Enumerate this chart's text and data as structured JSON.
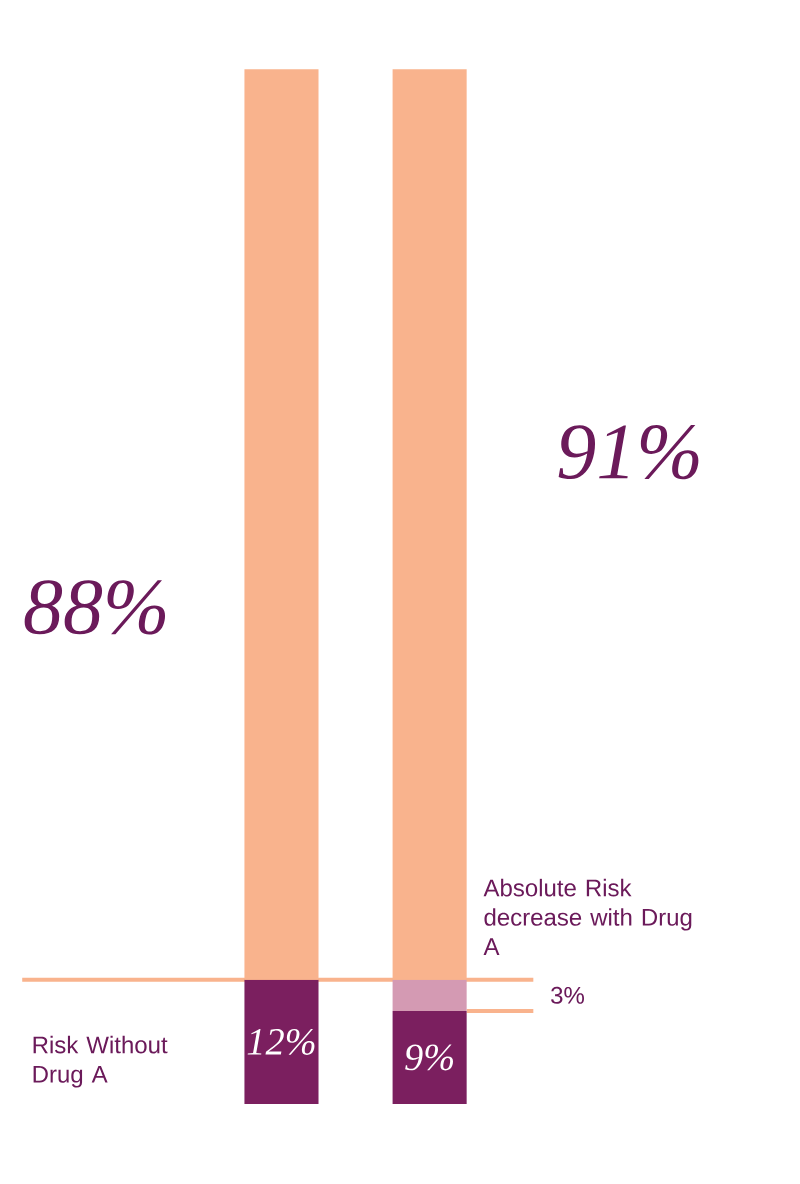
{
  "chart_data": {
    "type": "bar",
    "stacked": true,
    "categories": [
      null,
      null
    ],
    "ylim": [
      0,
      100
    ],
    "ref_lines": [
      {
        "axis": "y",
        "value": 12,
        "color": "#f9b38d"
      },
      {
        "axis": "y",
        "value": 9,
        "color": "#f9b38d"
      }
    ],
    "series": [
      {
        "color": "#7b1f5f",
        "values": [
          12,
          9
        ],
        "value_labels": [
          "12%",
          "9%"
        ]
      },
      {
        "color": "#d49ab3",
        "values": [
          null,
          3
        ]
      },
      {
        "color": "#f9b38d",
        "values": [
          88,
          88
        ]
      }
    ],
    "annotations": [
      "88%",
      "91%",
      "3%",
      "Risk Without Drug A",
      "Absolute Risk decrease with Drug A"
    ]
  }
}
